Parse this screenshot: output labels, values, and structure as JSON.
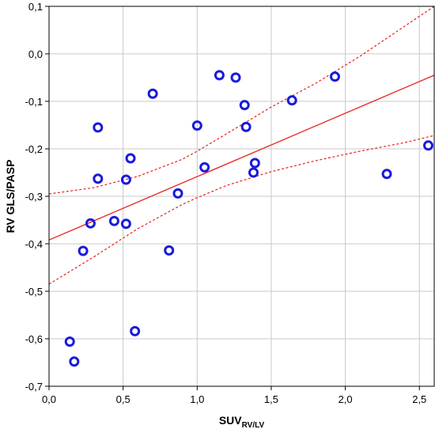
{
  "chart_data": {
    "type": "scatter",
    "title": "",
    "xlabel": "SUV",
    "xlabel_subscript": "RV/LV",
    "ylabel": "RV GLS/PASP",
    "xlim": [
      0.0,
      2.6
    ],
    "ylim": [
      -0.7,
      0.1
    ],
    "xticks": [
      0.0,
      0.5,
      1.0,
      1.5,
      2.0,
      2.5
    ],
    "xtick_labels": [
      "0,0",
      "0,5",
      "1,0",
      "1,5",
      "2,0",
      "2,5"
    ],
    "yticks": [
      0.1,
      0.0,
      -0.1,
      -0.2,
      -0.3,
      -0.4,
      -0.5,
      -0.6,
      -0.7
    ],
    "ytick_labels": [
      "0,1",
      "0,0",
      "-0,1",
      "-0,2",
      "-0,3",
      "-0,4",
      "-0,5",
      "-0,6",
      "-0,7"
    ],
    "grid": true,
    "marker_color": "#1a1adb",
    "fit_color": "#e8211e",
    "points": [
      {
        "x": 0.14,
        "y": -0.606
      },
      {
        "x": 0.17,
        "y": -0.648
      },
      {
        "x": 0.23,
        "y": -0.415
      },
      {
        "x": 0.28,
        "y": -0.357
      },
      {
        "x": 0.33,
        "y": -0.155
      },
      {
        "x": 0.33,
        "y": -0.263
      },
      {
        "x": 0.44,
        "y": -0.352
      },
      {
        "x": 0.52,
        "y": -0.358
      },
      {
        "x": 0.52,
        "y": -0.265
      },
      {
        "x": 0.55,
        "y": -0.22
      },
      {
        "x": 0.58,
        "y": -0.584
      },
      {
        "x": 0.7,
        "y": -0.084
      },
      {
        "x": 0.81,
        "y": -0.414
      },
      {
        "x": 0.87,
        "y": -0.294
      },
      {
        "x": 1.0,
        "y": -0.151
      },
      {
        "x": 1.05,
        "y": -0.239
      },
      {
        "x": 1.15,
        "y": -0.045
      },
      {
        "x": 1.26,
        "y": -0.05
      },
      {
        "x": 1.32,
        "y": -0.108
      },
      {
        "x": 1.33,
        "y": -0.154
      },
      {
        "x": 1.38,
        "y": -0.25
      },
      {
        "x": 1.39,
        "y": -0.23
      },
      {
        "x": 1.64,
        "y": -0.098
      },
      {
        "x": 1.93,
        "y": -0.048
      },
      {
        "x": 2.28,
        "y": -0.253
      },
      {
        "x": 2.56,
        "y": -0.193
      }
    ],
    "fit_line": {
      "x": [
        0.0,
        2.6
      ],
      "y": [
        -0.392,
        -0.045
      ]
    },
    "ci_upper": {
      "x": [
        0.0,
        0.3,
        0.6,
        0.9,
        1.0,
        1.2,
        1.5,
        1.8,
        2.1,
        2.4,
        2.6
      ],
      "y": [
        -0.295,
        -0.282,
        -0.258,
        -0.222,
        -0.205,
        -0.168,
        -0.112,
        -0.062,
        -0.005,
        0.058,
        0.1
      ]
    },
    "ci_lower": {
      "x": [
        0.0,
        0.3,
        0.6,
        0.9,
        1.0,
        1.2,
        1.5,
        1.8,
        2.1,
        2.4,
        2.6
      ],
      "y": [
        -0.485,
        -0.428,
        -0.368,
        -0.317,
        -0.303,
        -0.277,
        -0.248,
        -0.225,
        -0.205,
        -0.187,
        -0.172
      ]
    }
  }
}
